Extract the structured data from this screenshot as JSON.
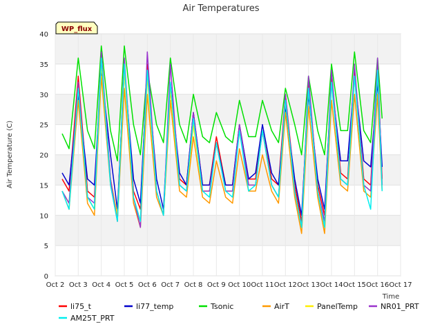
{
  "chart_data": {
    "type": "line",
    "title": "Air Temperatures",
    "xlabel": "Time",
    "ylabel": "Air Temperature (C)",
    "annotation": "WP_flux",
    "xlim": [
      "Oct 2",
      "Oct 17"
    ],
    "ylim": [
      0,
      40
    ],
    "x_ticks": [
      "Oct 2",
      "Oct 3",
      "Oct 4",
      "Oct 5",
      "Oct 6",
      "Oct 7",
      "Oct 8",
      "Oct 9",
      "Oct 10",
      "Oct 11",
      "Oct 12",
      "Oct 13",
      "Oct 14",
      "Oct 15",
      "Oct 16",
      "Oct 17"
    ],
    "y_ticks": [
      0,
      5,
      10,
      15,
      20,
      25,
      30,
      35,
      40
    ],
    "grid": true,
    "legend_position": "bottom",
    "x": [
      2.3,
      2.6,
      3.0,
      3.4,
      3.7,
      4.0,
      4.4,
      4.7,
      5.0,
      5.4,
      5.7,
      6.0,
      6.4,
      6.7,
      7.0,
      7.4,
      7.7,
      8.0,
      8.4,
      8.7,
      9.0,
      9.4,
      9.7,
      10.0,
      10.4,
      10.7,
      11.0,
      11.4,
      11.7,
      12.0,
      12.4,
      12.7,
      13.0,
      13.4,
      13.7,
      14.0,
      14.4,
      14.7,
      15.0,
      15.4,
      15.7,
      16.0,
      16.2
    ],
    "series": [
      {
        "name": "li75_t",
        "color": "#ff0000",
        "values": [
          16,
          14,
          33,
          14,
          13,
          35,
          16,
          10,
          35,
          14,
          11,
          35,
          14,
          10,
          31,
          16,
          15,
          27,
          15,
          15,
          23,
          15,
          15,
          25,
          16,
          16,
          24,
          16,
          15,
          30,
          15,
          9,
          32,
          15,
          10,
          33,
          17,
          16,
          34,
          16,
          15,
          35,
          16
        ]
      },
      {
        "name": "li77_temp",
        "color": "#0000cc",
        "values": [
          17,
          15,
          30,
          16,
          15,
          34,
          20,
          11,
          34,
          16,
          12,
          34,
          16,
          11,
          32,
          17,
          15,
          27,
          15,
          15,
          22,
          15,
          15,
          25,
          16,
          17,
          25,
          17,
          15,
          28,
          16,
          10,
          30,
          16,
          11,
          32,
          19,
          19,
          33,
          19,
          18,
          32,
          18
        ]
      },
      {
        "name": "Tsonic",
        "color": "#00e000",
        "values": [
          23.5,
          21,
          36,
          24,
          21,
          38,
          24,
          19,
          38,
          25,
          20,
          34,
          25,
          22,
          36,
          25,
          22,
          30,
          23,
          22,
          27,
          23,
          22,
          29,
          23,
          23,
          29,
          24,
          22,
          31,
          25,
          20,
          33,
          24,
          20,
          35,
          24,
          24,
          37,
          24,
          22,
          36,
          26
        ]
      },
      {
        "name": "AirT",
        "color": "#ff9900",
        "values": [
          14,
          11,
          29,
          12,
          10,
          33,
          15,
          9,
          31,
          12,
          8,
          30,
          13,
          10,
          29,
          14,
          13,
          23,
          13,
          12,
          19,
          13,
          12,
          21,
          14,
          14,
          20,
          14,
          12,
          27,
          13,
          7,
          28,
          13,
          7,
          29,
          15,
          14,
          30,
          14,
          13,
          30,
          14
        ]
      },
      {
        "name": "PanelTemp",
        "color": "#ffee00",
        "values": [
          14,
          12,
          31,
          13,
          11,
          35,
          16,
          10,
          34,
          13,
          9,
          33,
          14,
          10,
          31,
          15,
          14,
          25,
          14,
          14,
          22,
          14,
          14,
          24,
          15,
          15,
          24,
          15,
          13,
          29,
          14,
          8,
          31,
          14,
          8,
          32,
          16,
          15,
          33,
          15,
          14,
          34,
          15
        ]
      },
      {
        "name": "NR01_PRT",
        "color": "#9933cc",
        "values": [
          14,
          12,
          32,
          13,
          12,
          37,
          16,
          9,
          36,
          13,
          8,
          37,
          14,
          10,
          35,
          15,
          14,
          27,
          14,
          14,
          22,
          14,
          14,
          25,
          15,
          15,
          24,
          15,
          13,
          30,
          14,
          8,
          33,
          14,
          9,
          34,
          16,
          15,
          35,
          15,
          14,
          36,
          15
        ]
      },
      {
        "name": "AM25T_PRT",
        "color": "#00eeee",
        "values": [
          14,
          11,
          31,
          13,
          11,
          36,
          15,
          9,
          35,
          13,
          9,
          34,
          14,
          10,
          32,
          15,
          14,
          26,
          14,
          13,
          22,
          14,
          13,
          24,
          14,
          15,
          24,
          15,
          13,
          29,
          14,
          8,
          31,
          14,
          8,
          32,
          16,
          15,
          33,
          15,
          11,
          34,
          14
        ]
      }
    ]
  }
}
